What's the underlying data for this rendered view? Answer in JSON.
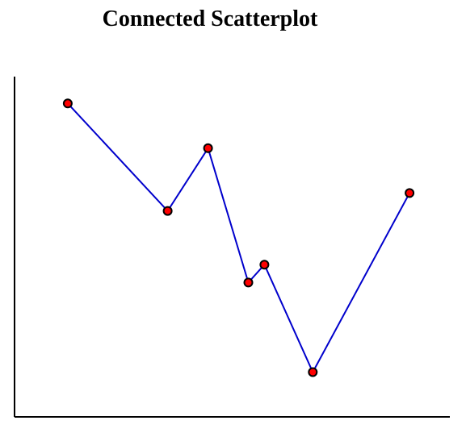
{
  "chart_data": {
    "type": "line",
    "title": "Connected Scatterplot",
    "xlabel": "",
    "ylabel": "",
    "xlim": [
      0,
      27
    ],
    "ylim": [
      0,
      19
    ],
    "grid": false,
    "x": [
      3.3,
      9.5,
      12,
      14.5,
      15.5,
      18.5,
      24.5
    ],
    "y": [
      17.5,
      11.5,
      15,
      7.5,
      8.5,
      2.5,
      12.5
    ],
    "line_color": "#0000cc",
    "marker_fill": "#ff0000",
    "marker_stroke": "#000000"
  }
}
